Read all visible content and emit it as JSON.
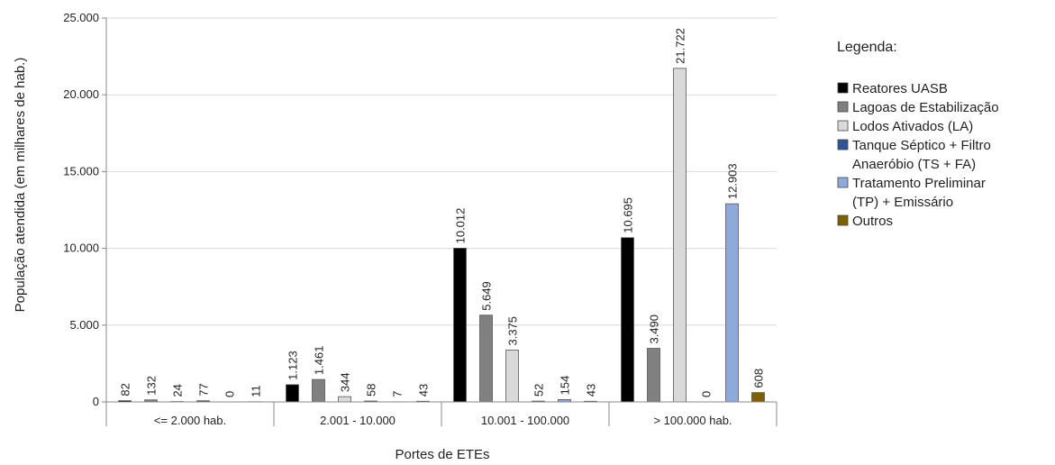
{
  "chart_data": {
    "type": "bar",
    "xlabel": "Portes de ETEs",
    "ylabel": "População atendida (em milhares de hab.)",
    "ylim": [
      0,
      25000
    ],
    "yticks": [
      "0",
      "5.000",
      "10.000",
      "15.000",
      "20.000",
      "25.000"
    ],
    "ytick_values": [
      0,
      5000,
      10000,
      15000,
      20000,
      25000
    ],
    "grid": true,
    "legend_position": "right",
    "legend_title": "Legenda:",
    "categories": [
      "<= 2.000 hab.",
      "2.001 - 10.000",
      "10.001 - 100.000",
      "> 100.000 hab."
    ],
    "series": [
      {
        "name": "Reatores UASB",
        "legend_lines": [
          "Reatores UASB"
        ],
        "color": "#000000",
        "values": [
          82,
          1123,
          10012,
          10695
        ],
        "labels": [
          "82",
          "1.123",
          "10.012",
          "10.695"
        ]
      },
      {
        "name": "Lagoas de Estabilização",
        "legend_lines": [
          "Lagoas de Estabilização"
        ],
        "color": "#808080",
        "values": [
          132,
          1461,
          5649,
          3490
        ],
        "labels": [
          "132",
          "1.461",
          "5.649",
          "3.490"
        ]
      },
      {
        "name": "Lodos Ativados (LA)",
        "legend_lines": [
          "Lodos Ativados (LA)"
        ],
        "color": "#d9d9d9",
        "values": [
          24,
          344,
          3375,
          21722
        ],
        "labels": [
          "24",
          "344",
          "3.375",
          "21.722"
        ]
      },
      {
        "name": "Tanque Séptico + Filtro Anaeróbio (TS + FA)",
        "legend_lines": [
          "Tanque Séptico + Filtro",
          "Anaeróbio (TS + FA)"
        ],
        "color": "#2f5597",
        "values": [
          77,
          58,
          52,
          0
        ],
        "labels": [
          "77",
          "58",
          "52",
          "0"
        ]
      },
      {
        "name": "Tratamento Preliminar (TP) + Emissário",
        "legend_lines": [
          "Tratamento Preliminar",
          "(TP) + Emissário"
        ],
        "color": "#8eaadb",
        "values": [
          0,
          7,
          154,
          12903
        ],
        "labels": [
          "0",
          "7",
          "154",
          "12.903"
        ]
      },
      {
        "name": "Outros",
        "legend_lines": [
          "Outros"
        ],
        "color": "#7f6000",
        "values": [
          11,
          43,
          43,
          608
        ],
        "labels": [
          "11",
          "43",
          "43",
          "608"
        ]
      }
    ]
  }
}
